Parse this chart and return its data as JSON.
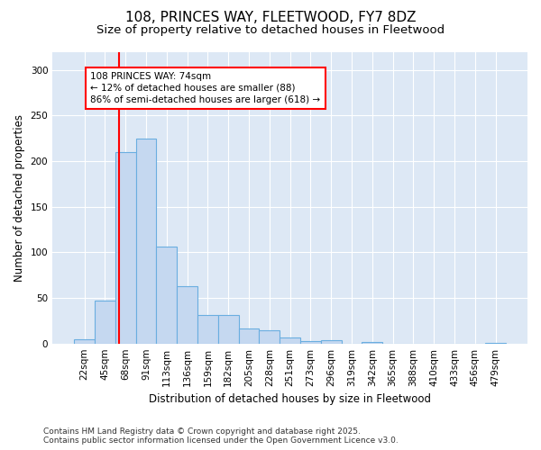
{
  "title_line1": "108, PRINCES WAY, FLEETWOOD, FY7 8DZ",
  "title_line2": "Size of property relative to detached houses in Fleetwood",
  "xlabel": "Distribution of detached houses by size in Fleetwood",
  "ylabel": "Number of detached properties",
  "bar_labels": [
    "22sqm",
    "45sqm",
    "68sqm",
    "91sqm",
    "113sqm",
    "136sqm",
    "159sqm",
    "182sqm",
    "205sqm",
    "228sqm",
    "251sqm",
    "273sqm",
    "296sqm",
    "319sqm",
    "342sqm",
    "365sqm",
    "388sqm",
    "410sqm",
    "433sqm",
    "456sqm",
    "479sqm"
  ],
  "bar_values": [
    5,
    47,
    210,
    225,
    106,
    63,
    31,
    31,
    16,
    14,
    7,
    3,
    4,
    0,
    2,
    0,
    0,
    0,
    0,
    0,
    1
  ],
  "bar_color": "#c5d8f0",
  "bar_edgecolor": "#6aaee0",
  "background_color": "#dde8f5",
  "ylim": [
    0,
    320
  ],
  "yticks": [
    0,
    50,
    100,
    150,
    200,
    250,
    300
  ],
  "red_line_index": 2,
  "annotation_text": "108 PRINCES WAY: 74sqm\n← 12% of detached houses are smaller (88)\n86% of semi-detached houses are larger (618) →",
  "footer_text": "Contains HM Land Registry data © Crown copyright and database right 2025.\nContains public sector information licensed under the Open Government Licence v3.0.",
  "title_fontsize": 11,
  "subtitle_fontsize": 9.5,
  "axis_label_fontsize": 8.5,
  "tick_fontsize": 7.5,
  "annotation_fontsize": 7.5,
  "footer_fontsize": 6.5
}
